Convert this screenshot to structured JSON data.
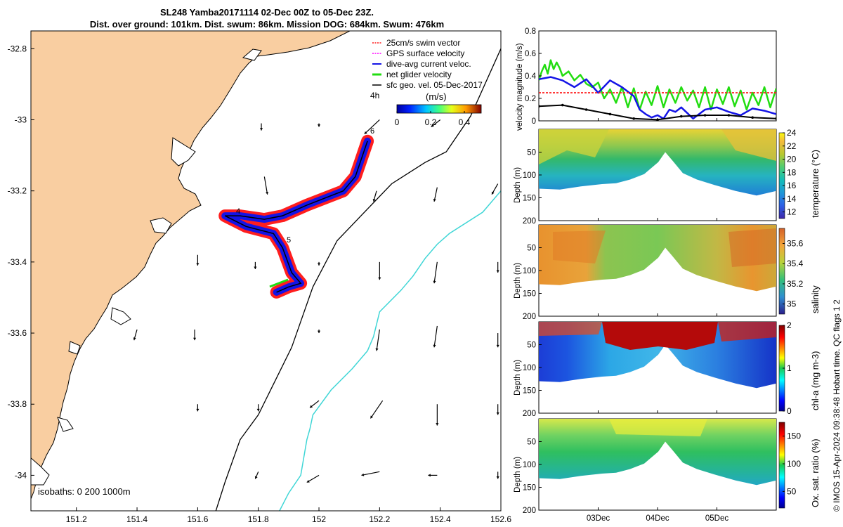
{
  "title": {
    "line1": "SL248 Yamba20171114 02-Dec 00Z to 05-Dec 23Z.",
    "line2": "Dist. over ground: 101km. Dist. swum: 86km. Mission DOG: 684km. Swum: 476km"
  },
  "side_text": "© IMOS 15-Apr-2024 09:38:48 Hobart time. QC flags 1  2",
  "colors": {
    "land": "#f9cea1",
    "isobath_200": "#000000",
    "isobath_1000": "#3fd6d6",
    "swim": "#ff1e1e",
    "gps": "#ff00ff",
    "current": "#1414e6",
    "glider": "#22dd11",
    "geo": "#000000"
  },
  "chart_data": [
    {
      "type": "map",
      "name": "map",
      "xlim": [
        151.05,
        152.6
      ],
      "ylim": [
        -34.1,
        -32.75
      ],
      "xticks": [
        "151.2",
        "151.4",
        "151.6",
        "151.8",
        "152",
        "152.2",
        "152.4",
        "152.6"
      ],
      "xtick_values": [
        151.2,
        151.4,
        151.6,
        151.8,
        152.0,
        152.2,
        152.4,
        152.6
      ],
      "yticks": [
        "-32.8",
        "-33",
        "-33.2",
        "-33.4",
        "-33.6",
        "-33.8",
        "-34"
      ],
      "ytick_values": [
        -32.8,
        -33.0,
        -33.2,
        -33.4,
        -33.6,
        -33.8,
        -34.0
      ],
      "legend": {
        "placement": "top-right",
        "entries": [
          "25cm/s swim vector",
          "GPS surface velocity",
          "dive-avg current veloc.",
          "net glider velocity",
          "sfc geo. vel. 05-Dec-2017"
        ]
      },
      "colorbar": {
        "label": "(m/s)",
        "ticks": [
          "0",
          "0.2",
          "0.4"
        ],
        "range": [
          0,
          0.5
        ]
      },
      "track_labels": [
        "4h",
        "4",
        "5",
        "6"
      ],
      "isobath_label": "isobaths: 0   200  1000m",
      "glider_track": [
        [
          152.16,
          -33.06
        ],
        [
          152.12,
          -33.16
        ],
        [
          152.08,
          -33.2
        ],
        [
          151.96,
          -33.24
        ],
        [
          151.88,
          -33.27
        ],
        [
          151.82,
          -33.28
        ],
        [
          151.74,
          -33.27
        ],
        [
          151.69,
          -33.27
        ],
        [
          151.76,
          -33.3
        ],
        [
          151.85,
          -33.32
        ],
        [
          151.88,
          -33.36
        ],
        [
          151.91,
          -33.43
        ],
        [
          151.94,
          -33.46
        ],
        [
          151.9,
          -33.47
        ],
        [
          151.86,
          -33.485
        ]
      ],
      "isobath_200": [
        [
          152.6,
          -32.8
        ],
        [
          152.5,
          -32.99
        ],
        [
          152.42,
          -33.09
        ],
        [
          152.35,
          -33.12
        ],
        [
          152.24,
          -33.18
        ],
        [
          152.06,
          -33.34
        ],
        [
          151.98,
          -33.47
        ],
        [
          151.91,
          -33.64
        ],
        [
          151.8,
          -33.83
        ],
        [
          151.74,
          -33.9
        ],
        [
          151.69,
          -34.02
        ],
        [
          151.66,
          -34.1
        ]
      ],
      "isobath_1000": [
        [
          152.6,
          -33.2
        ],
        [
          152.54,
          -33.26
        ],
        [
          152.43,
          -33.32
        ],
        [
          152.39,
          -33.35
        ],
        [
          152.35,
          -33.39
        ],
        [
          152.31,
          -33.44
        ],
        [
          152.27,
          -33.48
        ],
        [
          152.2,
          -33.54
        ],
        [
          152.18,
          -33.61
        ],
        [
          152.16,
          -33.65
        ],
        [
          152.11,
          -33.7
        ],
        [
          152.04,
          -33.76
        ],
        [
          151.98,
          -33.83
        ],
        [
          151.97,
          -33.87
        ],
        [
          151.96,
          -33.9
        ],
        [
          151.94,
          -34.0
        ],
        [
          151.9,
          -34.05
        ],
        [
          151.87,
          -34.1
        ]
      ],
      "geo_vectors": [
        [
          151.81,
          -33.01,
          0.0,
          -0.02
        ],
        [
          152.0,
          -33.01,
          0.0,
          -0.01
        ],
        [
          152.2,
          -33.0,
          -0.05,
          -0.04
        ],
        [
          152.4,
          -33.0,
          -0.03,
          -0.02
        ],
        [
          151.82,
          -33.16,
          0.01,
          -0.05
        ],
        [
          152.19,
          -33.2,
          -0.01,
          -0.03
        ],
        [
          152.39,
          -33.19,
          -0.01,
          -0.04
        ],
        [
          152.59,
          -33.18,
          -0.02,
          -0.03
        ],
        [
          151.6,
          -33.38,
          0.0,
          -0.03
        ],
        [
          151.79,
          -33.4,
          0.0,
          -0.02
        ],
        [
          152.0,
          -33.4,
          0.0,
          -0.01
        ],
        [
          152.2,
          -33.4,
          0.0,
          -0.05
        ],
        [
          152.39,
          -33.4,
          -0.01,
          -0.06
        ],
        [
          152.59,
          -33.4,
          0.0,
          -0.03
        ],
        [
          151.4,
          -33.59,
          -0.01,
          -0.03
        ],
        [
          151.59,
          -33.59,
          0.0,
          -0.03
        ],
        [
          152.0,
          -33.59,
          0.0,
          -0.01
        ],
        [
          152.2,
          -33.59,
          -0.01,
          -0.06
        ],
        [
          152.39,
          -33.58,
          -0.01,
          -0.06
        ],
        [
          152.59,
          -33.6,
          0.0,
          -0.04
        ],
        [
          151.6,
          -33.8,
          0.0,
          -0.02
        ],
        [
          151.8,
          -33.8,
          0.0,
          -0.02
        ],
        [
          152.0,
          -33.79,
          -0.03,
          -0.02
        ],
        [
          152.21,
          -33.79,
          -0.04,
          -0.05
        ],
        [
          152.39,
          -33.8,
          0.0,
          -0.06
        ],
        [
          152.59,
          -33.8,
          0.0,
          -0.03
        ],
        [
          151.8,
          -33.99,
          -0.01,
          -0.02
        ],
        [
          152.0,
          -34.0,
          -0.04,
          -0.02
        ],
        [
          152.2,
          -33.99,
          -0.06,
          -0.01
        ],
        [
          152.39,
          -34.0,
          -0.03,
          0.0
        ],
        [
          152.59,
          -33.99,
          0.0,
          -0.02
        ]
      ]
    },
    {
      "type": "line",
      "name": "velocity",
      "ylabel": "velocity magnitude (m/s)",
      "ylim": [
        0,
        0.8
      ],
      "yticks": [
        "0",
        "0.2",
        "0.4",
        "0.6",
        "0.8"
      ],
      "ytick_values": [
        0,
        0.2,
        0.4,
        0.6,
        0.8
      ],
      "xlim": [
        0,
        4
      ],
      "series": [
        {
          "name": "net glider velocity",
          "x": [
            0,
            0.05,
            0.1,
            0.15,
            0.2,
            0.25,
            0.3,
            0.35,
            0.4,
            0.5,
            0.6,
            0.7,
            0.8,
            0.9,
            1.0,
            1.1,
            1.2,
            1.3,
            1.4,
            1.5,
            1.6,
            1.7,
            1.8,
            1.9,
            2.0,
            2.1,
            2.2,
            2.3,
            2.4,
            2.5,
            2.6,
            2.7,
            2.8,
            2.9,
            3.0,
            3.1,
            3.2,
            3.3,
            3.4,
            3.5,
            3.6,
            3.7,
            3.8,
            3.9,
            4.0
          ],
          "values": [
            0.36,
            0.44,
            0.5,
            0.42,
            0.54,
            0.46,
            0.52,
            0.47,
            0.4,
            0.44,
            0.36,
            0.41,
            0.33,
            0.3,
            0.34,
            0.2,
            0.28,
            0.16,
            0.3,
            0.12,
            0.29,
            0.1,
            0.26,
            0.14,
            0.31,
            0.12,
            0.28,
            0.16,
            0.3,
            0.18,
            0.27,
            0.12,
            0.3,
            0.1,
            0.28,
            0.15,
            0.3,
            0.13,
            0.27,
            0.1,
            0.25,
            0.14,
            0.3,
            0.12,
            0.29
          ]
        },
        {
          "name": "dive-avg current veloc.",
          "x": [
            0,
            0.2,
            0.4,
            0.6,
            0.8,
            1.0,
            1.2,
            1.4,
            1.6,
            1.7,
            1.8,
            1.9,
            2.0,
            2.1,
            2.2,
            2.3,
            2.4,
            2.6,
            2.8,
            3.0,
            3.2,
            3.4,
            3.6,
            3.8,
            4.0
          ],
          "values": [
            0.37,
            0.39,
            0.36,
            0.3,
            0.37,
            0.25,
            0.36,
            0.3,
            0.22,
            0.1,
            0.06,
            0.03,
            0.05,
            0.02,
            0.1,
            0.08,
            0.12,
            0.02,
            0.1,
            0.12,
            0.08,
            0.05,
            0.11,
            0.09,
            0.06
          ]
        },
        {
          "name": "25cm/s swim vector",
          "x": [
            0,
            4
          ],
          "values": [
            0.25,
            0.25
          ]
        },
        {
          "name": "sfc geo. vel. 05-Dec-2017",
          "x": [
            0,
            0.4,
            0.8,
            1.2,
            1.6,
            2.0,
            2.4,
            2.8,
            3.2,
            3.6,
            4.0
          ],
          "values": [
            0.13,
            0.14,
            0.1,
            0.06,
            0.02,
            0.01,
            0.04,
            0.05,
            0.05,
            0.03,
            0.02
          ]
        }
      ]
    },
    {
      "type": "heatmap",
      "name": "temperature",
      "ylabel": "Depth (m)",
      "ylim": [
        0,
        200
      ],
      "yticks": [
        "50",
        "100",
        "150",
        "200"
      ],
      "ytick_values": [
        50,
        100,
        150,
        200
      ],
      "colorbar": {
        "label": "temperature (°C)",
        "range": [
          11,
          24
        ],
        "ticks": [
          "12",
          "14",
          "16",
          "18",
          "20",
          "22",
          "24"
        ],
        "tick_values": [
          12,
          14,
          16,
          18,
          20,
          22,
          24
        ]
      }
    },
    {
      "type": "heatmap",
      "name": "salinity",
      "ylabel": "Depth (m)",
      "ylim": [
        0,
        200
      ],
      "yticks": [
        "50",
        "100",
        "150",
        "200"
      ],
      "ytick_values": [
        50,
        100,
        150,
        200
      ],
      "colorbar": {
        "label": "salinity",
        "range": [
          34.9,
          35.75
        ],
        "ticks": [
          "35",
          "35.2",
          "35.4",
          "35.6"
        ],
        "tick_values": [
          35.0,
          35.2,
          35.4,
          35.6
        ]
      }
    },
    {
      "type": "heatmap",
      "name": "chla",
      "ylabel": "Depth (m)",
      "ylim": [
        0,
        200
      ],
      "yticks": [
        "50",
        "100",
        "150",
        "200"
      ],
      "ytick_values": [
        50,
        100,
        150,
        200
      ],
      "colorbar": {
        "label": "chl-a (mg m-3)",
        "range": [
          0,
          2
        ],
        "ticks": [
          "0",
          "1",
          "2"
        ],
        "tick_values": [
          0,
          1,
          2
        ]
      }
    },
    {
      "type": "heatmap",
      "name": "oxygen",
      "ylabel": "Depth (m)",
      "ylim": [
        0,
        200
      ],
      "yticks": [
        "50",
        "100",
        "150",
        "200"
      ],
      "ytick_values": [
        50,
        100,
        150,
        200
      ],
      "colorbar": {
        "label": "Ox. sat. ratio (%)",
        "range": [
          20,
          175
        ],
        "ticks": [
          "50",
          "100",
          "150"
        ],
        "tick_values": [
          50,
          100,
          150
        ]
      },
      "xticks": [
        "03Dec",
        "04Dec",
        "05Dec"
      ],
      "xtick_values": [
        1,
        2,
        3
      ]
    }
  ]
}
